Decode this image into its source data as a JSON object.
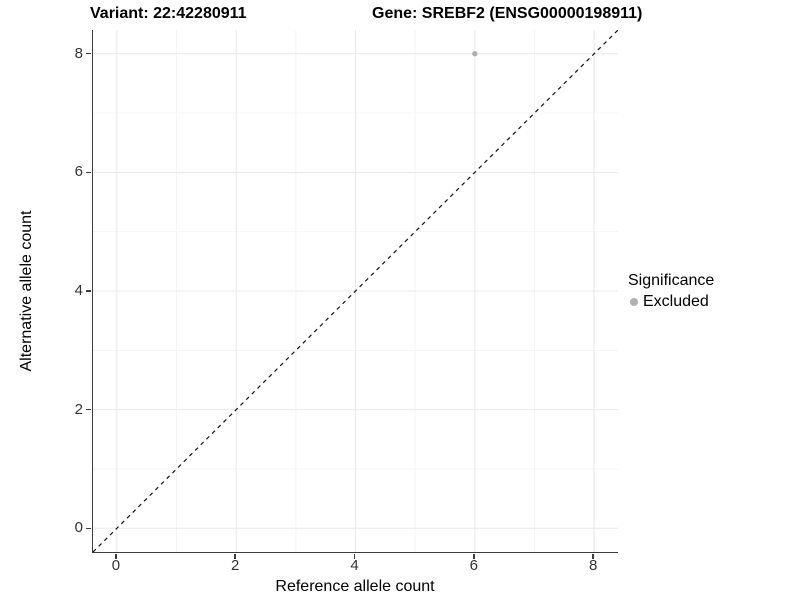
{
  "chart_data": {
    "type": "scatter",
    "title_left": "Variant: 22:42280911",
    "title_right": "Gene: SREBF2 (ENSG00000198911)",
    "xlabel": "Reference allele count",
    "ylabel": "Alternative allele count",
    "x_domain": [
      -0.4,
      8.4
    ],
    "y_domain": [
      -0.4,
      8.4
    ],
    "x_ticks": [
      0,
      2,
      4,
      6,
      8
    ],
    "y_ticks": [
      0,
      2,
      4,
      6,
      8
    ],
    "x_minor_ticks": [
      1,
      3,
      5,
      7
    ],
    "y_minor_ticks": [
      1,
      3,
      5,
      7
    ],
    "grid": "major-and-minor",
    "points": [
      {
        "x": 6,
        "y": 8,
        "series": "Excluded"
      }
    ],
    "reference_line": {
      "style": "dashed",
      "slope": 1,
      "intercept": 0
    },
    "legend": {
      "title": "Significance",
      "position": "right",
      "items": [
        {
          "label": "Excluded",
          "color": "#b0b0b0",
          "marker": "circle"
        }
      ]
    },
    "colors": {
      "point": "#b0b0b0",
      "grid_major": "#e8e8e8",
      "grid_minor": "#f4f4f4",
      "axis_line": "#3c3c3c",
      "reference_line": "#111111",
      "tick_label": "#333333",
      "text": "#000000"
    }
  }
}
